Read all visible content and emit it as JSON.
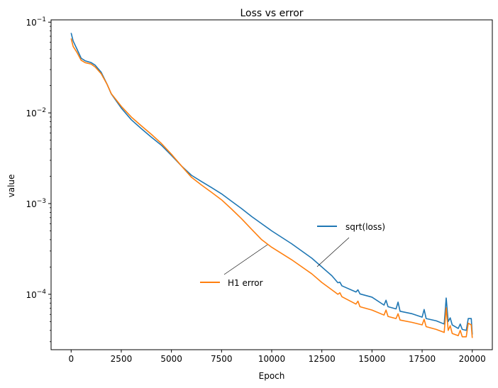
{
  "chart_data": {
    "type": "line",
    "title": "Loss vs error",
    "xlabel": "Epoch",
    "ylabel": "value",
    "yscale": "log",
    "xlim": [
      -1000,
      21000
    ],
    "ylim": [
      2.45e-05,
      0.106
    ],
    "grid": false,
    "legend": "inline-callouts",
    "xticks": [
      0,
      2500,
      5000,
      7500,
      10000,
      12500,
      15000,
      17500,
      20000
    ],
    "xtick_labels": [
      "0",
      "2500",
      "5000",
      "7500",
      "10000",
      "12500",
      "15000",
      "17500",
      "20000"
    ],
    "yticks": [
      {
        "base": "10",
        "exp": "−1",
        "value": 0.1
      },
      {
        "base": "10",
        "exp": "−2",
        "value": 0.01
      },
      {
        "base": "10",
        "exp": "−3",
        "value": 0.001
      },
      {
        "base": "10",
        "exp": "−4",
        "value": 0.0001
      }
    ],
    "series": [
      {
        "name": "sqrt(loss)",
        "color": "#1f77b4",
        "label_anchor": {
          "x": 12300,
          "y": 0.000187
        },
        "points": [
          [
            0,
            0.076
          ],
          [
            100,
            0.062
          ],
          [
            300,
            0.05
          ],
          [
            500,
            0.04
          ],
          [
            700,
            0.0375
          ],
          [
            1000,
            0.0358
          ],
          [
            1200,
            0.0335
          ],
          [
            1500,
            0.028
          ],
          [
            1800,
            0.0205
          ],
          [
            2000,
            0.0162
          ],
          [
            2500,
            0.0113
          ],
          [
            3000,
            0.0084
          ],
          [
            3500,
            0.0067
          ],
          [
            4000,
            0.0054
          ],
          [
            4500,
            0.0044
          ],
          [
            5000,
            0.0034
          ],
          [
            5500,
            0.0026
          ],
          [
            6000,
            0.00205
          ],
          [
            6500,
            0.00175
          ],
          [
            7000,
            0.0015
          ],
          [
            7500,
            0.00128
          ],
          [
            8000,
            0.00106
          ],
          [
            8500,
            0.00088
          ],
          [
            9000,
            0.00072
          ],
          [
            9500,
            0.0006
          ],
          [
            10000,
            0.0005
          ],
          [
            11000,
            0.00036
          ],
          [
            12000,
            0.00025
          ],
          [
            13000,
            0.00016
          ],
          [
            13300,
            0.000134
          ],
          [
            13400,
            0.000136
          ],
          [
            13500,
            0.000124
          ],
          [
            14200,
            0.000106
          ],
          [
            14300,
            0.000112
          ],
          [
            14400,
            0.000101
          ],
          [
            15000,
            9.3e-05
          ],
          [
            15600,
            7.6e-05
          ],
          [
            15700,
            8.6e-05
          ],
          [
            15800,
            7.3e-05
          ],
          [
            16200,
            6.9e-05
          ],
          [
            16300,
            8.2e-05
          ],
          [
            16400,
            6.5e-05
          ],
          [
            17000,
            6.1e-05
          ],
          [
            17500,
            5.6e-05
          ],
          [
            17600,
            6.8e-05
          ],
          [
            17700,
            5.4e-05
          ],
          [
            18200,
            5.1e-05
          ],
          [
            18600,
            4.7e-05
          ],
          [
            18700,
            9.1e-05
          ],
          [
            18800,
            5e-05
          ],
          [
            18900,
            5.5e-05
          ],
          [
            19000,
            4.6e-05
          ],
          [
            19300,
            4.2e-05
          ],
          [
            19400,
            4.7e-05
          ],
          [
            19500,
            4.1e-05
          ],
          [
            19700,
            4e-05
          ],
          [
            19800,
            5.4e-05
          ],
          [
            19950,
            5.4e-05
          ],
          [
            20000,
            3.6e-05
          ]
        ]
      },
      {
        "name": "H1 error",
        "color": "#ff7f0e",
        "label_anchor": {
          "x": 9800,
          "y": 0.00034
        },
        "points": [
          [
            0,
            0.066
          ],
          [
            100,
            0.054
          ],
          [
            300,
            0.046
          ],
          [
            500,
            0.038
          ],
          [
            700,
            0.0358
          ],
          [
            1000,
            0.0345
          ],
          [
            1200,
            0.032
          ],
          [
            1500,
            0.027
          ],
          [
            1800,
            0.0205
          ],
          [
            2000,
            0.0163
          ],
          [
            2500,
            0.0118
          ],
          [
            3000,
            0.009
          ],
          [
            3500,
            0.0072
          ],
          [
            4000,
            0.0058
          ],
          [
            4500,
            0.0046
          ],
          [
            5000,
            0.0035
          ],
          [
            5500,
            0.0026
          ],
          [
            6000,
            0.00195
          ],
          [
            6500,
            0.0016
          ],
          [
            7000,
            0.00133
          ],
          [
            7500,
            0.0011
          ],
          [
            8000,
            0.00087
          ],
          [
            8500,
            0.00068
          ],
          [
            9000,
            0.00052
          ],
          [
            9500,
            0.0004
          ],
          [
            10000,
            0.00033
          ],
          [
            11000,
            0.00024
          ],
          [
            12000,
            0.000168
          ],
          [
            12500,
            0.000135
          ],
          [
            13000,
            0.000112
          ],
          [
            13300,
            0.0001
          ],
          [
            13400,
            0.000104
          ],
          [
            13500,
            9.4e-05
          ],
          [
            14200,
            7.8e-05
          ],
          [
            14300,
            8.4e-05
          ],
          [
            14400,
            7.3e-05
          ],
          [
            15000,
            6.7e-05
          ],
          [
            15600,
            5.9e-05
          ],
          [
            15700,
            6.7e-05
          ],
          [
            15800,
            5.7e-05
          ],
          [
            16200,
            5.4e-05
          ],
          [
            16300,
            6.1e-05
          ],
          [
            16400,
            5.2e-05
          ],
          [
            17000,
            4.9e-05
          ],
          [
            17500,
            4.6e-05
          ],
          [
            17600,
            5.3e-05
          ],
          [
            17700,
            4.4e-05
          ],
          [
            18200,
            4.1e-05
          ],
          [
            18600,
            3.8e-05
          ],
          [
            18700,
            7.1e-05
          ],
          [
            18800,
            4e-05
          ],
          [
            18900,
            4.5e-05
          ],
          [
            19000,
            3.7e-05
          ],
          [
            19300,
            3.5e-05
          ],
          [
            19400,
            4e-05
          ],
          [
            19500,
            3.4e-05
          ],
          [
            19700,
            3.4e-05
          ],
          [
            19800,
            4.8e-05
          ],
          [
            19950,
            4.6e-05
          ],
          [
            20000,
            3.3e-05
          ]
        ]
      }
    ]
  }
}
